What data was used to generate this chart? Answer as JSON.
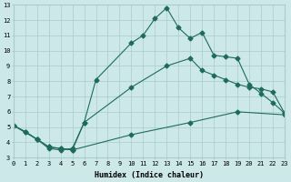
{
  "line1_x": [
    0,
    1,
    2,
    3,
    4,
    5,
    6,
    7,
    10,
    11,
    12,
    13,
    14,
    15,
    16,
    17,
    18,
    19,
    20,
    21,
    22,
    23
  ],
  "line1_y": [
    5.1,
    4.7,
    4.2,
    3.6,
    3.5,
    3.6,
    5.3,
    8.1,
    10.5,
    11.0,
    12.1,
    12.8,
    11.5,
    10.8,
    11.2,
    9.7,
    9.6,
    9.5,
    7.8,
    7.2,
    6.6,
    5.9
  ],
  "line2_x": [
    0,
    1,
    2,
    3,
    4,
    5,
    6,
    10,
    13,
    15,
    16,
    17,
    18,
    19,
    20,
    21,
    22,
    23
  ],
  "line2_y": [
    5.1,
    4.7,
    4.2,
    3.7,
    3.6,
    3.5,
    5.3,
    7.6,
    9.0,
    9.5,
    8.7,
    8.4,
    8.1,
    7.8,
    7.6,
    7.5,
    7.3,
    5.9
  ],
  "line3_x": [
    0,
    2,
    3,
    4,
    5,
    10,
    15,
    19,
    23
  ],
  "line3_y": [
    5.1,
    4.2,
    3.7,
    3.6,
    3.5,
    4.5,
    5.3,
    6.0,
    5.8
  ],
  "color": "#1e6b5e",
  "bg_color": "#cce8e8",
  "grid_color": "#aacccc",
  "xlabel": "Humidex (Indice chaleur)",
  "xlim": [
    0,
    23
  ],
  "ylim": [
    3,
    13
  ],
  "xticks": [
    0,
    1,
    2,
    3,
    4,
    5,
    6,
    7,
    8,
    9,
    10,
    11,
    12,
    13,
    14,
    15,
    16,
    17,
    18,
    19,
    20,
    21,
    22,
    23
  ],
  "yticks": [
    3,
    4,
    5,
    6,
    7,
    8,
    9,
    10,
    11,
    12,
    13
  ]
}
